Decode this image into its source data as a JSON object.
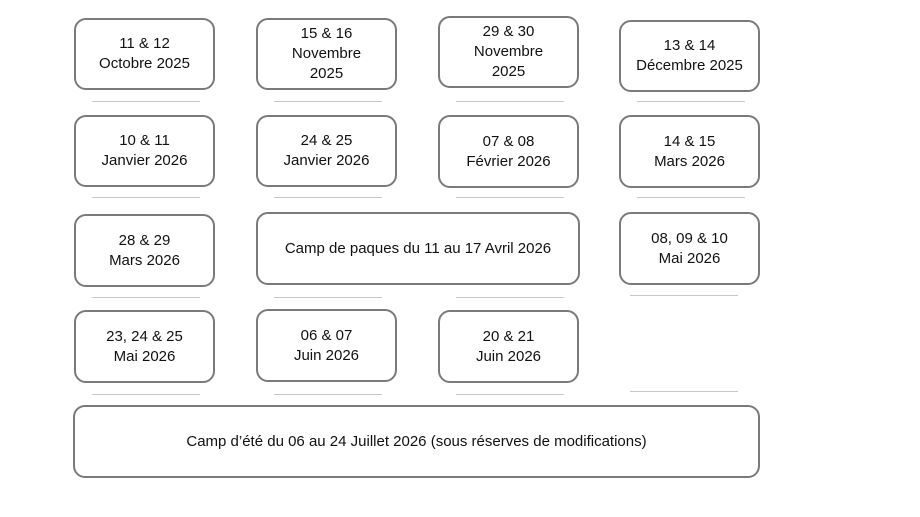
{
  "dates": [
    {
      "lines": [
        "11 & 12",
        "Octobre 2025"
      ]
    },
    {
      "lines": [
        "15 & 16",
        "Novembre",
        "2025"
      ]
    },
    {
      "lines": [
        "29 & 30",
        "Novembre",
        "2025"
      ]
    },
    {
      "lines": [
        "13 & 14",
        "Décembre 2025"
      ]
    },
    {
      "lines": [
        "10 & 11",
        "Janvier 2026"
      ]
    },
    {
      "lines": [
        "24 & 25",
        "Janvier 2026"
      ]
    },
    {
      "lines": [
        "07 & 08",
        "Février 2026"
      ]
    },
    {
      "lines": [
        "14 & 15",
        "Mars 2026"
      ]
    },
    {
      "lines": [
        "28 & 29",
        "Mars 2026"
      ]
    },
    {
      "lines": [
        "Camp de paques du 11 au 17 Avril 2026"
      ]
    },
    {
      "lines": [
        "08, 09 & 10",
        "Mai 2026"
      ]
    },
    {
      "lines": [
        "23, 24 & 25",
        "Mai 2026"
      ]
    },
    {
      "lines": [
        "06 & 07",
        "Juin 2026"
      ]
    },
    {
      "lines": [
        "20 & 21",
        "Juin 2026"
      ]
    },
    {
      "lines": [
        "Camp d’été du 06 au 24 Juillet 2026 (sous réserves de modifications)"
      ]
    }
  ]
}
